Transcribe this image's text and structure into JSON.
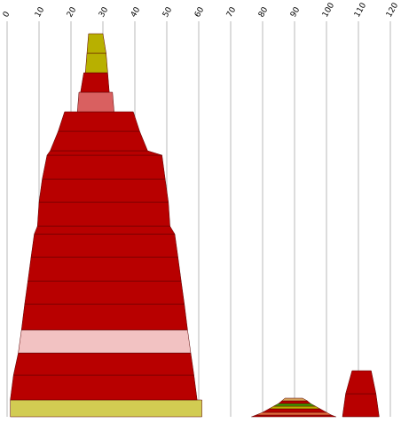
{
  "chart_data": {
    "type": "area",
    "x_ticks": [
      "0",
      "10",
      "20",
      "30",
      "40",
      "50",
      "60",
      "70",
      "80",
      "90",
      "100",
      "110",
      "120"
    ],
    "xlim": [
      0,
      120
    ],
    "y_from_bottom": true,
    "grid": "vertical",
    "colors": {
      "red": "#b80000",
      "light_red": "#d96060",
      "pink": "#f2c2c2",
      "olive": "#b8b000",
      "khaki": "#d2cc52",
      "green": "#3c9b00",
      "tan": "#d4a15a",
      "salmon": "#e36b3c",
      "outline": "#5a0000"
    },
    "stacks": [
      {
        "layers": [
          {
            "y0": 0,
            "y1": 19,
            "left": [
              1.0,
              1.0
            ],
            "right": [
              61.0,
              61.0
            ],
            "color": "khaki"
          },
          {
            "y0": 19,
            "y1": 47,
            "left": [
              1.0,
              2.0
            ],
            "right": [
              59.5,
              58.5
            ],
            "color": "red"
          },
          {
            "y0": 47,
            "y1": 72,
            "left": [
              2.0,
              3.5
            ],
            "right": [
              58.5,
              57.5
            ],
            "color": "red"
          },
          {
            "y0": 72,
            "y1": 98,
            "left": [
              3.5,
              4.5
            ],
            "right": [
              57.5,
              56.5
            ],
            "color": "pink"
          },
          {
            "y0": 98,
            "y1": 127,
            "left": [
              4.5,
              5.5
            ],
            "right": [
              56.5,
              55.5
            ],
            "color": "red"
          },
          {
            "y0": 127,
            "y1": 153,
            "left": [
              5.5,
              6.5
            ],
            "right": [
              55.5,
              54.5
            ],
            "color": "red"
          },
          {
            "y0": 153,
            "y1": 180,
            "left": [
              6.5,
              7.5
            ],
            "right": [
              54.5,
              53.5
            ],
            "color": "red"
          },
          {
            "y0": 180,
            "y1": 206,
            "left": [
              7.5,
              8.5
            ],
            "right": [
              53.5,
              52.5
            ],
            "color": "red"
          },
          {
            "y0": 206,
            "y1": 215,
            "left": [
              8.5,
              9.5
            ],
            "right": [
              52.5,
              51.0
            ],
            "color": "red"
          },
          {
            "y0": 215,
            "y1": 242,
            "left": [
              9.5,
              10.0
            ],
            "right": [
              51.0,
              50.5
            ],
            "color": "red"
          },
          {
            "y0": 242,
            "y1": 268,
            "left": [
              10.0,
              11.0
            ],
            "right": [
              50.5,
              49.5
            ],
            "color": "red"
          },
          {
            "y0": 268,
            "y1": 295,
            "left": [
              11.0,
              12.5
            ],
            "right": [
              49.5,
              48.5
            ],
            "color": "red"
          },
          {
            "y0": 295,
            "y1": 300,
            "left": [
              12.5,
              13.5
            ],
            "right": [
              48.5,
              44.0
            ],
            "color": "red"
          },
          {
            "y0": 300,
            "y1": 322,
            "left": [
              13.5,
              16.0
            ],
            "right": [
              44.0,
              41.5
            ],
            "color": "red"
          },
          {
            "y0": 322,
            "y1": 344,
            "left": [
              16.0,
              18.0
            ],
            "right": [
              41.5,
              39.5
            ],
            "color": "red"
          },
          {
            "y0": 344,
            "y1": 366,
            "left": [
              22.0,
              22.5
            ],
            "right": [
              33.5,
              33.0
            ],
            "color": "light_red"
          },
          {
            "y0": 366,
            "y1": 388,
            "left": [
              23.0,
              24.0
            ],
            "right": [
              32.0,
              31.5
            ],
            "color": "red"
          },
          {
            "y0": 388,
            "y1": 410,
            "left": [
              24.5,
              25.0
            ],
            "right": [
              31.5,
              31.0
            ],
            "color": "olive"
          },
          {
            "y0": 410,
            "y1": 432,
            "left": [
              25.0,
              25.5
            ],
            "right": [
              31.0,
              30.0
            ],
            "color": "olive"
          }
        ]
      },
      {
        "layers": [
          {
            "y0": 0,
            "y1": 2,
            "left": [
              76.5,
              78.0
            ],
            "right": [
              103.0,
              101.5
            ],
            "color": "red"
          },
          {
            "y0": 2,
            "y1": 5,
            "left": [
              78.0,
              80.0
            ],
            "right": [
              101.5,
              100.0
            ],
            "color": "salmon"
          },
          {
            "y0": 5,
            "y1": 9,
            "left": [
              80.0,
              82.0
            ],
            "right": [
              100.0,
              98.0
            ],
            "color": "red"
          },
          {
            "y0": 9,
            "y1": 12,
            "left": [
              82.0,
              83.5
            ],
            "right": [
              98.0,
              96.5
            ],
            "color": "olive"
          },
          {
            "y0": 12,
            "y1": 15,
            "left": [
              83.5,
              85.0
            ],
            "right": [
              96.5,
              95.0
            ],
            "color": "green"
          },
          {
            "y0": 15,
            "y1": 18,
            "left": [
              85.0,
              86.0
            ],
            "right": [
              95.0,
              94.0
            ],
            "color": "red"
          },
          {
            "y0": 18,
            "y1": 21,
            "left": [
              86.0,
              87.0
            ],
            "right": [
              94.0,
              92.5
            ],
            "color": "tan"
          }
        ]
      },
      {
        "layers": [
          {
            "y0": 0,
            "y1": 26,
            "left": [
              105.0,
              106.0
            ],
            "right": [
              116.5,
              115.5
            ],
            "color": "red"
          },
          {
            "y0": 26,
            "y1": 52,
            "left": [
              106.0,
              108.0
            ],
            "right": [
              115.5,
              114.0
            ],
            "color": "red"
          }
        ]
      }
    ]
  }
}
